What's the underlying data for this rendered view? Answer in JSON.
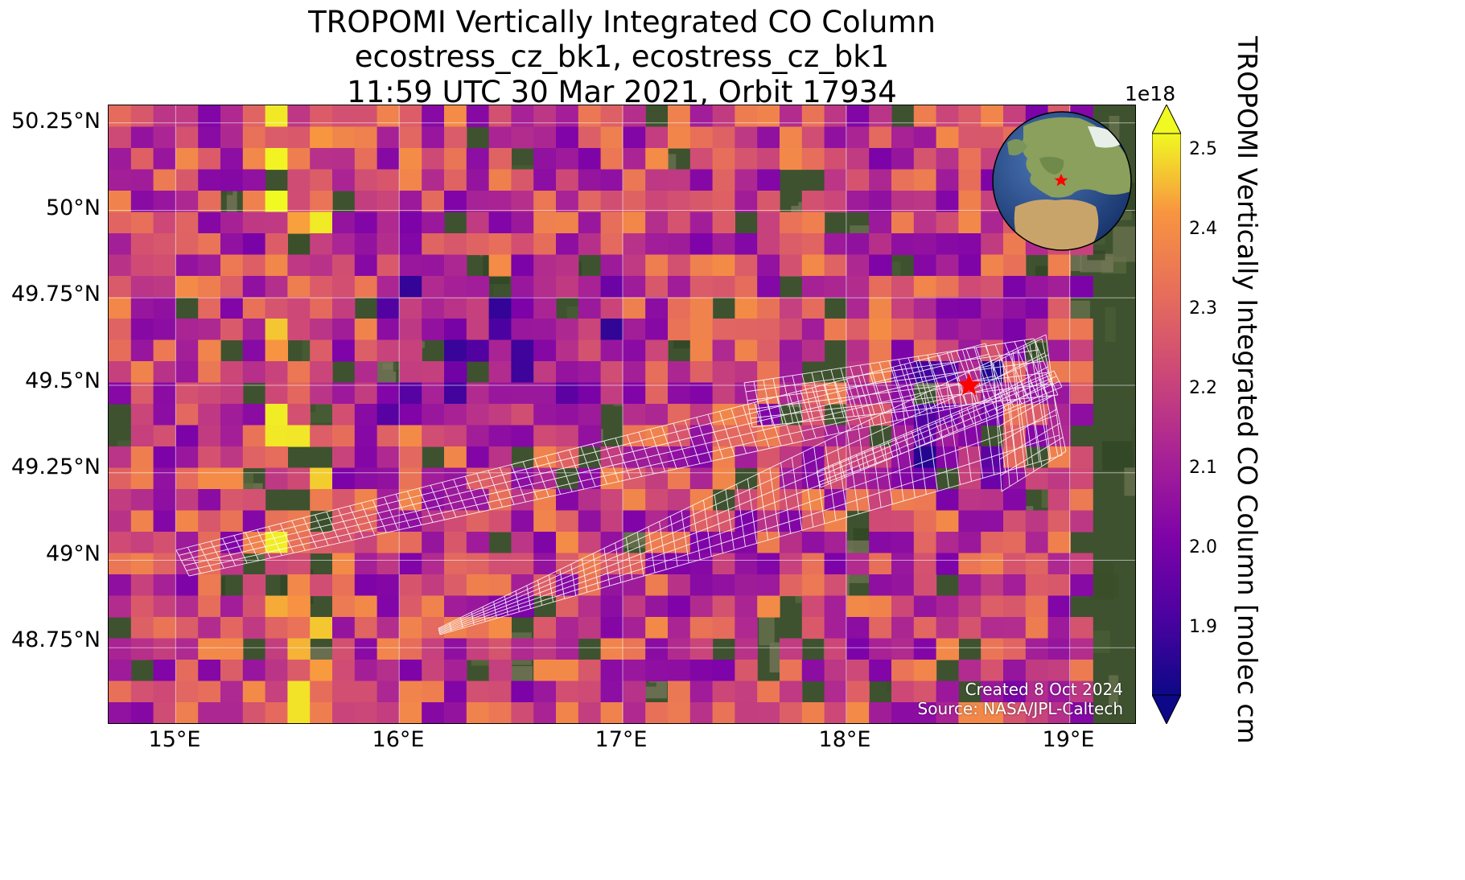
{
  "title": {
    "line1": "TROPOMI Vertically Integrated CO Column",
    "line2": "ecostress_cz_bk1, ecostress_cz_bk1",
    "line3": "11:59 UTC 30 Mar 2021, Orbit 17934"
  },
  "map": {
    "lon_range": [
      14.7,
      19.3
    ],
    "lat_range": [
      48.53,
      50.3
    ],
    "x_ticks": [
      "15°E",
      "16°E",
      "17°E",
      "18°E",
      "19°E"
    ],
    "y_ticks": [
      "50.25°N",
      "50°N",
      "49.75°N",
      "49.5°N",
      "49.25°N",
      "49°N",
      "48.75°N"
    ],
    "gridlines": true,
    "background": "satellite imagery",
    "marker": {
      "type": "red-star",
      "lon": 18.55,
      "lat": 49.5,
      "color": "#ff0000"
    }
  },
  "colorbar": {
    "label": "TROPOMI Vertically Integrated CO Column [molec cm",
    "exponent": "1e18",
    "ticks": [
      "2.5",
      "2.4",
      "2.3",
      "2.2",
      "2.1",
      "2.0",
      "1.9"
    ],
    "range": [
      1.81,
      2.54
    ],
    "colormap": "plasma",
    "extend": "both"
  },
  "inset_globe": {
    "marker": "red-star",
    "centered_on": "Europe"
  },
  "credits": {
    "created": "Created 8 Oct 2024",
    "source": "Source: NASA/JPL-Caltech"
  }
}
